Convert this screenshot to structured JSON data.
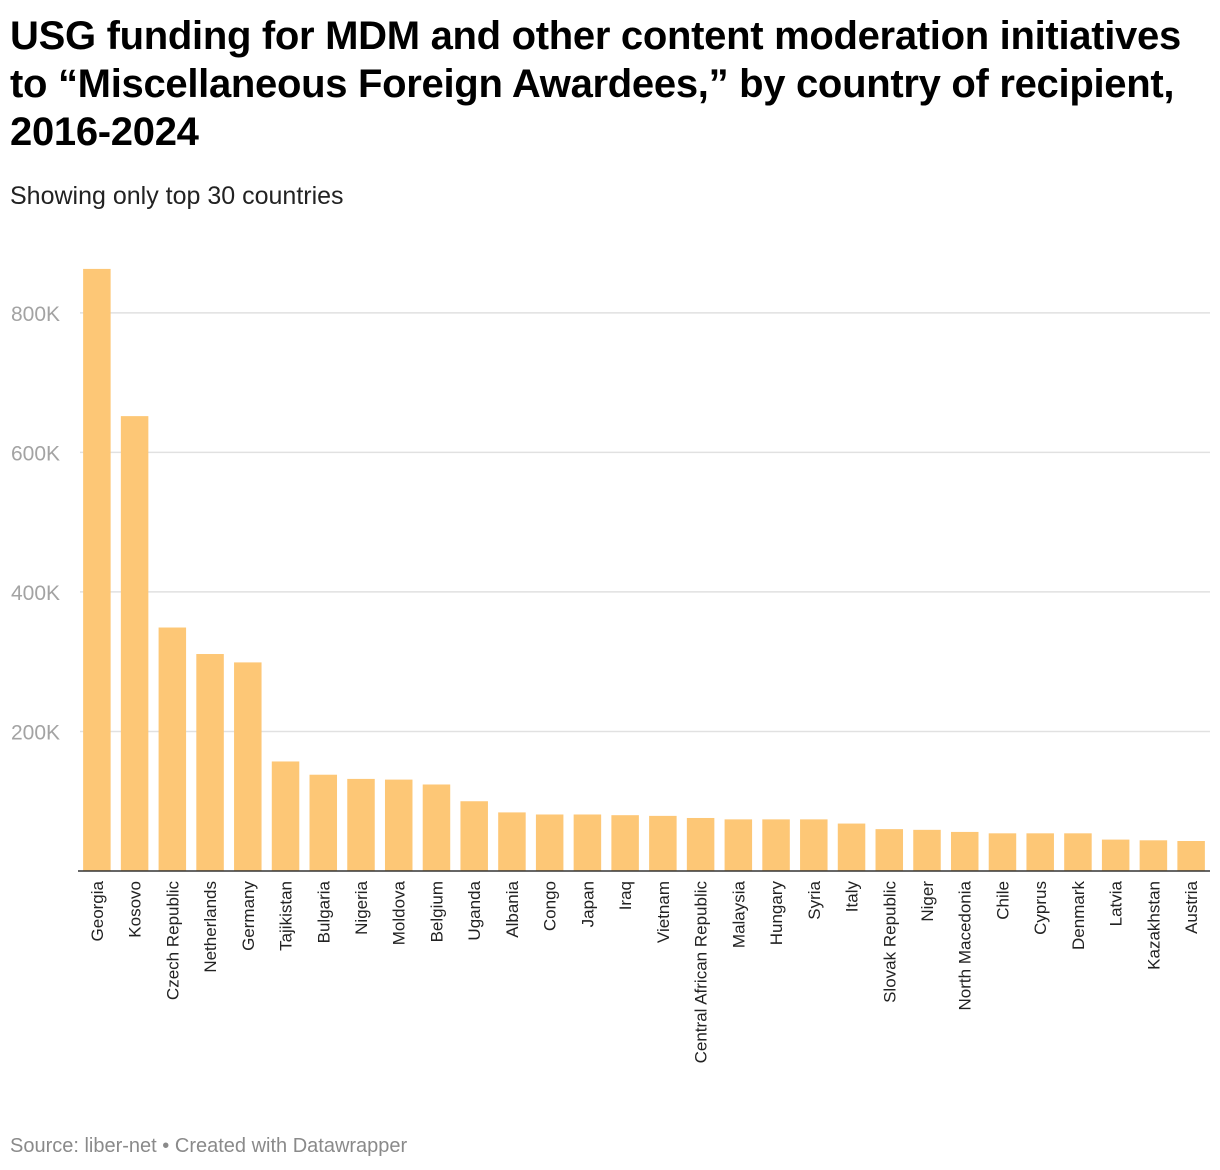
{
  "header": {
    "title": "USG funding for MDM and other content moderation initiatives to “Miscellaneous Foreign Awardees,” by country of recipient, 2016-2024",
    "subtitle": "Showing only top 30 countries"
  },
  "footer": {
    "source_label": "Source: liber-net",
    "separator": " • ",
    "credit": "Created with Datawrapper"
  },
  "colors": {
    "bar": "#fdc776",
    "grid": "#e1e1e1",
    "axis": "#333333",
    "tick_label": "#a3a3a3"
  },
  "chart_data": {
    "type": "bar",
    "title": "USG funding for MDM and other content moderation initiatives to “Miscellaneous Foreign Awardees,” by country of recipient, 2016-2024",
    "subtitle": "Showing only top 30 countries",
    "xlabel": "",
    "ylabel": "",
    "ylim": [
      0,
      860000
    ],
    "yticks": [
      200000,
      400000,
      600000,
      800000
    ],
    "ytick_labels": [
      "200K",
      "400K",
      "600K",
      "800K"
    ],
    "grid": true,
    "categories": [
      "Georgia",
      "Kosovo",
      "Czech Republic",
      "Netherlands",
      "Germany",
      "Tajikistan",
      "Bulgaria",
      "Nigeria",
      "Moldova",
      "Belgium",
      "Uganda",
      "Albania",
      "Congo",
      "Japan",
      "Iraq",
      "Vietnam",
      "Central African Republic",
      "Malaysia",
      "Hungary",
      "Syria",
      "Italy",
      "Slovak Republic",
      "Niger",
      "North Macedonia",
      "Chile",
      "Cyprus",
      "Denmark",
      "Latvia",
      "Kazakhstan",
      "Austria"
    ],
    "values": [
      863000,
      652000,
      349000,
      311000,
      299000,
      157000,
      138000,
      132000,
      131000,
      124000,
      100000,
      84000,
      81000,
      81000,
      80000,
      79000,
      76000,
      74000,
      74000,
      74000,
      68000,
      60000,
      59000,
      56000,
      54000,
      54000,
      54000,
      45000,
      44000,
      43000
    ]
  }
}
